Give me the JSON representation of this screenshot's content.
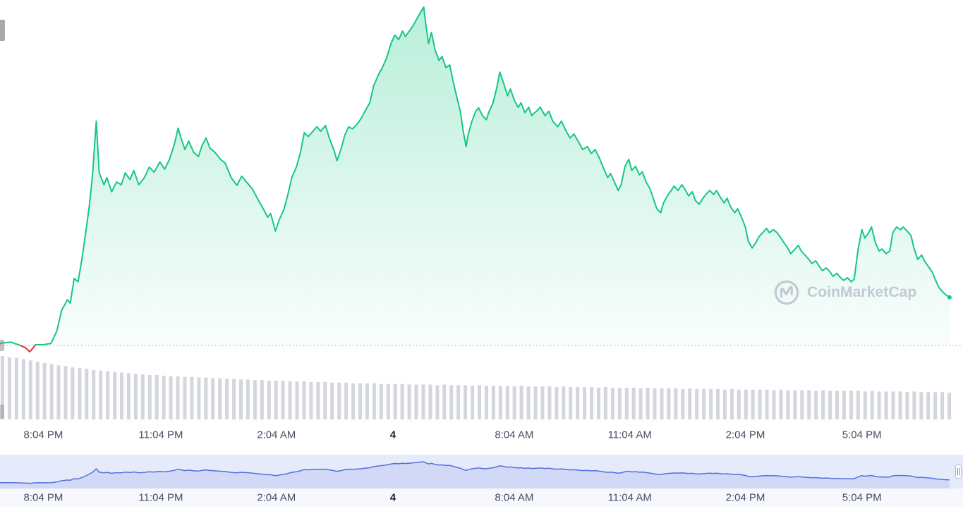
{
  "watermark": {
    "brand": "CoinMarketCap"
  },
  "icons": {
    "watermark_logo": "coinmarketcap-logo",
    "navigator_handle": "drag-handle"
  },
  "time_axis": {
    "labels": [
      "8:04 PM",
      "11:04 PM",
      "2:04 AM",
      "4",
      "8:04 AM",
      "11:04 AM",
      "2:04 PM",
      "5:04 PM"
    ]
  },
  "chart_data": {
    "type": "area",
    "title": "",
    "x_unit": "time (24h window)",
    "y_unit": "normalized 0-100 (no y-axis labels visible)",
    "baseline_value": 0,
    "grid": "single dotted baseline",
    "legend_position": "none",
    "x_tick_labels": [
      "8:04 PM",
      "11:04 PM",
      "2:04 AM",
      "4",
      "8:04 AM",
      "11:04 AM",
      "2:04 PM",
      "5:04 PM"
    ],
    "red_segment_index_range": [
      2,
      5
    ],
    "series": [
      {
        "name": "price",
        "color": "#16c784",
        "points": [
          [
            0,
            0.6
          ],
          [
            1.1,
            1
          ],
          [
            2.1,
            0
          ],
          [
            2.6,
            -0.6
          ],
          [
            3.1,
            -1.9
          ],
          [
            3.7,
            0.2
          ],
          [
            4.5,
            0.2
          ],
          [
            5.3,
            0.6
          ],
          [
            5.9,
            4.2
          ],
          [
            6.4,
            10.4
          ],
          [
            7,
            13.5
          ],
          [
            7.3,
            12.5
          ],
          [
            7.7,
            19.8
          ],
          [
            8.1,
            18.8
          ],
          [
            8.5,
            25.4
          ],
          [
            8.9,
            33.3
          ],
          [
            9.3,
            41.7
          ],
          [
            9.6,
            50
          ],
          [
            10,
            66.3
          ],
          [
            10.3,
            51
          ],
          [
            10.8,
            47.5
          ],
          [
            11.1,
            49.6
          ],
          [
            11.6,
            45.4
          ],
          [
            12.1,
            48.3
          ],
          [
            12.6,
            47.5
          ],
          [
            13,
            51
          ],
          [
            13.5,
            49
          ],
          [
            13.9,
            51.7
          ],
          [
            14.4,
            47.5
          ],
          [
            15,
            49.6
          ],
          [
            15.5,
            52.7
          ],
          [
            16,
            51.2
          ],
          [
            16.6,
            54.2
          ],
          [
            17.1,
            52.1
          ],
          [
            17.6,
            55
          ],
          [
            18.1,
            59.4
          ],
          [
            18.5,
            64.2
          ],
          [
            18.8,
            61.3
          ],
          [
            19.2,
            57.9
          ],
          [
            19.6,
            60.4
          ],
          [
            20.1,
            57.1
          ],
          [
            20.6,
            55.8
          ],
          [
            21,
            59.2
          ],
          [
            21.4,
            61.3
          ],
          [
            21.8,
            58.3
          ],
          [
            22.3,
            57.1
          ],
          [
            22.9,
            55
          ],
          [
            23.4,
            53.8
          ],
          [
            24,
            49.6
          ],
          [
            24.6,
            47.3
          ],
          [
            25.1,
            50
          ],
          [
            25.6,
            48.3
          ],
          [
            26.2,
            46.3
          ],
          [
            26.8,
            43.1
          ],
          [
            27.3,
            40.6
          ],
          [
            27.8,
            37.9
          ],
          [
            28.1,
            39
          ],
          [
            28.6,
            33.8
          ],
          [
            29,
            37.1
          ],
          [
            29.5,
            40.4
          ],
          [
            29.9,
            44.6
          ],
          [
            30.3,
            49.6
          ],
          [
            30.8,
            52.9
          ],
          [
            31.2,
            57.1
          ],
          [
            31.6,
            62.9
          ],
          [
            32,
            61.7
          ],
          [
            32.5,
            63.3
          ],
          [
            32.9,
            64.6
          ],
          [
            33.3,
            63.3
          ],
          [
            33.8,
            65
          ],
          [
            34.2,
            61.3
          ],
          [
            34.7,
            57.5
          ],
          [
            35,
            54.6
          ],
          [
            35.4,
            57.9
          ],
          [
            35.8,
            62.1
          ],
          [
            36.2,
            64.6
          ],
          [
            36.6,
            64
          ],
          [
            37.1,
            65.4
          ],
          [
            37.5,
            67.1
          ],
          [
            37.9,
            69.2
          ],
          [
            38.4,
            71.7
          ],
          [
            38.8,
            76.7
          ],
          [
            39.3,
            80
          ],
          [
            39.7,
            82.1
          ],
          [
            40.1,
            84.6
          ],
          [
            40.6,
            89.2
          ],
          [
            41,
            91.7
          ],
          [
            41.4,
            90.4
          ],
          [
            41.8,
            92.9
          ],
          [
            42.1,
            91.3
          ],
          [
            42.6,
            93.3
          ],
          [
            43,
            95
          ],
          [
            43.4,
            97.1
          ],
          [
            44,
            100
          ],
          [
            44.2,
            95.4
          ],
          [
            44.5,
            89.2
          ],
          [
            44.8,
            92.5
          ],
          [
            45.2,
            87.1
          ],
          [
            45.6,
            84.2
          ],
          [
            45.9,
            85.4
          ],
          [
            46.3,
            82.1
          ],
          [
            46.7,
            82.9
          ],
          [
            47,
            78.8
          ],
          [
            47.4,
            73.8
          ],
          [
            47.8,
            69.2
          ],
          [
            48.1,
            63.3
          ],
          [
            48.4,
            58.8
          ],
          [
            48.6,
            62.1
          ],
          [
            49,
            66.3
          ],
          [
            49.4,
            69.2
          ],
          [
            49.7,
            70.2
          ],
          [
            50.1,
            67.9
          ],
          [
            50.5,
            66.7
          ],
          [
            50.8,
            69.2
          ],
          [
            51.2,
            71.7
          ],
          [
            51.6,
            76.3
          ],
          [
            51.9,
            80.8
          ],
          [
            52.3,
            77.5
          ],
          [
            52.7,
            73.8
          ],
          [
            53,
            75.8
          ],
          [
            53.4,
            72.5
          ],
          [
            53.8,
            70.4
          ],
          [
            54.1,
            71.7
          ],
          [
            54.5,
            68.8
          ],
          [
            54.9,
            70.4
          ],
          [
            55.2,
            67.9
          ],
          [
            55.7,
            69.2
          ],
          [
            56.1,
            70.4
          ],
          [
            56.6,
            67.9
          ],
          [
            57,
            69.2
          ],
          [
            57.4,
            66.3
          ],
          [
            57.9,
            64.6
          ],
          [
            58.3,
            66.3
          ],
          [
            58.8,
            63.3
          ],
          [
            59.2,
            61.3
          ],
          [
            59.6,
            62.5
          ],
          [
            60.1,
            60
          ],
          [
            60.5,
            57.9
          ],
          [
            61,
            58.8
          ],
          [
            61.4,
            56.7
          ],
          [
            61.8,
            57.9
          ],
          [
            62.3,
            55
          ],
          [
            62.7,
            52.1
          ],
          [
            63.1,
            49.6
          ],
          [
            63.4,
            50.8
          ],
          [
            63.8,
            48.3
          ],
          [
            64.2,
            45.8
          ],
          [
            64.5,
            47.5
          ],
          [
            64.9,
            52.9
          ],
          [
            65.3,
            55
          ],
          [
            65.6,
            51.7
          ],
          [
            66,
            52.9
          ],
          [
            66.4,
            50.4
          ],
          [
            66.7,
            51.3
          ],
          [
            67.1,
            48.3
          ],
          [
            67.5,
            46.3
          ],
          [
            67.8,
            43.8
          ],
          [
            68.2,
            40.4
          ],
          [
            68.6,
            39.2
          ],
          [
            68.9,
            42.1
          ],
          [
            69.3,
            44.2
          ],
          [
            69.7,
            45.8
          ],
          [
            70,
            47.1
          ],
          [
            70.4,
            45.8
          ],
          [
            70.8,
            47.5
          ],
          [
            71.1,
            46.3
          ],
          [
            71.5,
            44.2
          ],
          [
            71.9,
            45.4
          ],
          [
            72.2,
            42.9
          ],
          [
            72.6,
            41.7
          ],
          [
            73,
            43.5
          ],
          [
            73.3,
            44.6
          ],
          [
            73.7,
            45.8
          ],
          [
            74.1,
            44.6
          ],
          [
            74.4,
            45.8
          ],
          [
            74.8,
            43.8
          ],
          [
            75.2,
            42.1
          ],
          [
            75.5,
            43.5
          ],
          [
            75.9,
            40.8
          ],
          [
            76.3,
            39.2
          ],
          [
            76.6,
            40.4
          ],
          [
            77,
            37.9
          ],
          [
            77.4,
            35
          ],
          [
            77.7,
            30.8
          ],
          [
            78.1,
            28.8
          ],
          [
            78.5,
            30.4
          ],
          [
            78.8,
            32.1
          ],
          [
            79.2,
            33.3
          ],
          [
            79.6,
            34.6
          ],
          [
            79.9,
            33.3
          ],
          [
            80.3,
            34.2
          ],
          [
            80.7,
            33.3
          ],
          [
            81,
            32.1
          ],
          [
            81.4,
            30.4
          ],
          [
            81.8,
            28.8
          ],
          [
            82.1,
            27.1
          ],
          [
            82.5,
            28.3
          ],
          [
            82.9,
            29.6
          ],
          [
            83.2,
            27.9
          ],
          [
            83.6,
            26.7
          ],
          [
            84,
            25.4
          ],
          [
            84.3,
            24.2
          ],
          [
            84.7,
            25
          ],
          [
            85.1,
            23.3
          ],
          [
            85.4,
            22.1
          ],
          [
            85.8,
            22.9
          ],
          [
            86.2,
            21.7
          ],
          [
            86.5,
            20.4
          ],
          [
            86.9,
            21.3
          ],
          [
            87.3,
            20
          ],
          [
            87.6,
            19.2
          ],
          [
            88,
            20
          ],
          [
            88.4,
            18.8
          ],
          [
            88.7,
            19.6
          ],
          [
            89.1,
            28.3
          ],
          [
            89.5,
            34.2
          ],
          [
            89.8,
            31.7
          ],
          [
            90.2,
            33.3
          ],
          [
            90.5,
            35
          ],
          [
            90.9,
            30.4
          ],
          [
            91.3,
            27.9
          ],
          [
            91.6,
            28.5
          ],
          [
            92,
            27.1
          ],
          [
            92.4,
            27.9
          ],
          [
            92.7,
            33.3
          ],
          [
            93.1,
            35
          ],
          [
            93.5,
            34.2
          ],
          [
            93.8,
            35
          ],
          [
            94.2,
            33.8
          ],
          [
            94.6,
            32.5
          ],
          [
            94.9,
            28.8
          ],
          [
            95.3,
            25.4
          ],
          [
            95.7,
            26.7
          ],
          [
            96,
            25
          ],
          [
            96.4,
            23.3
          ],
          [
            96.8,
            21.7
          ],
          [
            97.1,
            19.6
          ],
          [
            97.5,
            17.1
          ],
          [
            97.9,
            15.8
          ],
          [
            98.2,
            15
          ],
          [
            98.6,
            14.2
          ]
        ]
      }
    ],
    "volume_series": {
      "name": "volume",
      "color": "#d4d6dd",
      "unit": "normalized 0-100 (no axis labels visible)",
      "values": [
        100,
        98,
        97,
        95,
        93,
        91,
        89,
        87,
        85,
        84,
        82,
        81,
        80,
        78,
        77,
        76,
        75,
        74,
        73,
        72,
        71,
        70,
        70,
        69,
        68,
        68,
        67,
        67,
        66,
        66,
        65,
        65,
        64,
        64,
        63,
        63,
        62,
        62,
        61,
        61,
        61,
        60,
        60,
        60,
        59,
        59,
        59,
        58,
        58,
        58,
        57,
        57,
        57,
        57,
        56,
        56,
        56,
        56,
        55,
        55,
        55,
        55,
        54,
        55,
        54,
        54,
        54,
        53,
        54,
        53,
        53,
        53,
        53,
        52,
        53,
        52,
        52,
        52,
        52,
        51,
        52,
        51,
        51,
        51,
        51,
        50,
        51,
        50,
        50,
        50,
        50,
        49,
        50,
        49,
        49,
        49,
        49,
        48,
        49,
        48,
        48,
        48,
        48,
        47,
        48,
        47,
        47,
        47,
        47,
        47,
        46,
        47,
        46,
        46,
        46,
        46,
        45,
        46,
        45,
        45,
        45,
        45,
        45,
        44,
        45,
        44,
        44,
        44,
        44,
        43,
        44,
        43,
        43,
        43,
        43,
        42
      ]
    },
    "navigator_series": "same shape as price series",
    "colors": {
      "line": "#16c784",
      "down": "#ea3943",
      "area_top": "rgba(22,199,132,0.30)",
      "volume": "#d4d6dd",
      "baseline": "#97a0b0",
      "nav_line": "#5470dd",
      "nav_fill": "rgba(84,112,221,0.14)",
      "nav_bg": "#e6ebfc",
      "label": "#464d5d"
    }
  }
}
